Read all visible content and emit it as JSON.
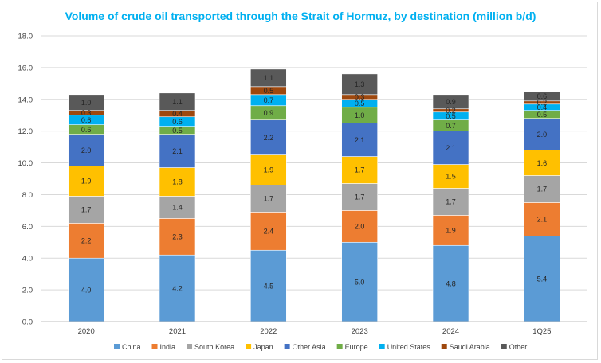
{
  "chart_data": {
    "type": "bar",
    "stacked": true,
    "title": "Volume of crude oil transported through the Strait of Hormuz, by destination (million b/d)",
    "xlabel": "",
    "ylabel": "",
    "ylim": [
      0,
      18
    ],
    "ytick_step": 2,
    "ytick_labels": [
      "0.0",
      "2.0",
      "4.0",
      "6.0",
      "8.0",
      "10.0",
      "12.0",
      "14.0",
      "16.0",
      "18.0"
    ],
    "grid": "horizontal",
    "legend_position": "bottom",
    "categories": [
      "2020",
      "2021",
      "2022",
      "2023",
      "2024",
      "1Q25"
    ],
    "series": [
      {
        "name": "China",
        "color": "#5b9bd5",
        "values": [
          4.0,
          4.2,
          4.5,
          5.0,
          4.8,
          5.4
        ],
        "labels": [
          "4.0",
          "4.2",
          "4.5",
          "5.0",
          "4.8",
          "5.4"
        ]
      },
      {
        "name": "India",
        "color": "#ed7d31",
        "values": [
          2.2,
          2.3,
          2.4,
          2.0,
          1.9,
          2.1
        ],
        "labels": [
          "2.2",
          "2.3",
          "2.4",
          "2.0",
          "1.9",
          "2.1"
        ]
      },
      {
        "name": "South Korea",
        "color": "#a5a5a5",
        "values": [
          1.7,
          1.4,
          1.7,
          1.7,
          1.7,
          1.7
        ],
        "labels": [
          "1.7",
          "1.4",
          "1.7",
          "1.7",
          "1.7",
          "1.7"
        ]
      },
      {
        "name": "Japan",
        "color": "#ffc000",
        "values": [
          1.9,
          1.8,
          1.9,
          1.7,
          1.5,
          1.6
        ],
        "labels": [
          "1.9",
          "1.8",
          "1.9",
          "1.7",
          "1.5",
          "1.6"
        ]
      },
      {
        "name": "Other Asia",
        "color": "#4472c4",
        "values": [
          2.0,
          2.1,
          2.2,
          2.1,
          2.1,
          2.0
        ],
        "labels": [
          "2.0",
          "2.1",
          "2.2",
          "2.1",
          "2.1",
          "2.0"
        ]
      },
      {
        "name": "Europe",
        "color": "#70ad47",
        "values": [
          0.6,
          0.5,
          0.9,
          1.0,
          0.7,
          0.5
        ],
        "labels": [
          "0.6",
          "0.5",
          "0.9",
          "1.0",
          "0.7",
          "0.5"
        ]
      },
      {
        "name": "United States",
        "color": "#00b0f0",
        "values": [
          0.6,
          0.6,
          0.7,
          0.5,
          0.5,
          0.4
        ],
        "labels": [
          "0.6",
          "0.6",
          "0.7",
          "0.5",
          "0.5",
          "0.4"
        ]
      },
      {
        "name": "Saudi Arabia",
        "color": "#9e480e",
        "values": [
          0.3,
          0.4,
          0.5,
          0.3,
          0.2,
          0.2
        ],
        "labels": [
          "0.3",
          "0.4",
          "0.5",
          "0.3",
          "0.2",
          "0.2"
        ]
      },
      {
        "name": "Other",
        "color": "#595959",
        "values": [
          1.0,
          1.1,
          1.1,
          1.3,
          0.9,
          0.6
        ],
        "labels": [
          "1.0",
          "1.1",
          "1.1",
          "1.3",
          "0.9",
          "0.6"
        ]
      }
    ]
  }
}
